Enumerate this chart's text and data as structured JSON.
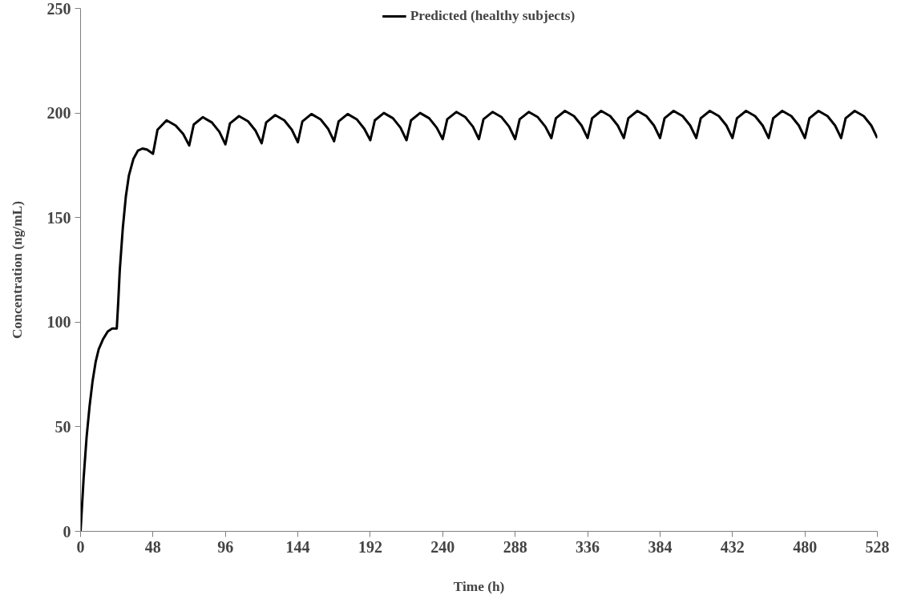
{
  "chart_data": {
    "type": "line",
    "xlabel": "Time (h)",
    "ylabel": "Concentration (ng/mL)",
    "xlim": [
      0,
      528
    ],
    "ylim": [
      0,
      250
    ],
    "xticks": [
      0,
      48,
      96,
      144,
      192,
      240,
      288,
      336,
      384,
      432,
      480,
      528
    ],
    "yticks": [
      0,
      50,
      100,
      150,
      200,
      250
    ],
    "grid": false,
    "legend": "top",
    "marker": "none",
    "line_style": "solid",
    "series": [
      {
        "name": "Predicted (healthy subjects)",
        "color": "#000000",
        "x": [
          0,
          2,
          4,
          6,
          8,
          10,
          12,
          15,
          18,
          21,
          24,
          25,
          26,
          28,
          30,
          32,
          35,
          38,
          41,
          44,
          48,
          51,
          57,
          63,
          68,
          72,
          75,
          81,
          87,
          92,
          96,
          99,
          105,
          111,
          116,
          120,
          123,
          129,
          135,
          140,
          144,
          147,
          153,
          159,
          164,
          168,
          171,
          177,
          183,
          188,
          192,
          195,
          201,
          207,
          212,
          216,
          219,
          225,
          231,
          236,
          240,
          243,
          249,
          255,
          260,
          264,
          267,
          273,
          279,
          284,
          288,
          291,
          297,
          303,
          308,
          312,
          315,
          321,
          327,
          332,
          336,
          339,
          345,
          351,
          356,
          360,
          363,
          369,
          375,
          380,
          384,
          387,
          393,
          399,
          404,
          408,
          411,
          417,
          423,
          428,
          432,
          435,
          441,
          447,
          452,
          456,
          459,
          465,
          471,
          476,
          480,
          483,
          489,
          495,
          500,
          504,
          507,
          513,
          519,
          524,
          528
        ],
        "values": [
          0,
          25,
          45,
          60,
          72,
          81,
          87,
          92,
          95.5,
          97,
          97,
          110,
          125,
          145,
          160,
          170,
          178,
          182,
          183,
          182.5,
          180.5,
          192,
          196.5,
          194,
          190,
          184.5,
          194.5,
          198,
          195.5,
          191,
          185,
          195,
          198.5,
          196,
          191.5,
          185.5,
          195.5,
          199,
          196.5,
          192,
          186,
          196,
          199.5,
          197,
          192.5,
          186.5,
          196,
          199.5,
          197,
          192.5,
          187,
          196.5,
          200,
          197.5,
          193,
          187,
          196.5,
          200,
          197.5,
          193,
          187.5,
          197,
          200.5,
          198,
          193.5,
          187.5,
          197,
          200.5,
          198,
          193.5,
          187.5,
          197,
          200.5,
          198,
          193.5,
          188,
          197.5,
          201,
          198.5,
          194,
          188,
          197.5,
          201,
          198.5,
          194,
          188,
          197.5,
          201,
          198.5,
          194,
          188,
          197.5,
          201,
          198.5,
          194,
          188,
          197.5,
          201,
          198.5,
          194,
          188,
          197.5,
          201,
          198.5,
          194,
          188,
          197.5,
          201,
          198.5,
          194,
          188,
          197.5,
          201,
          198.5,
          194,
          188,
          197.5,
          201,
          198.5,
          194,
          188
        ]
      }
    ]
  }
}
